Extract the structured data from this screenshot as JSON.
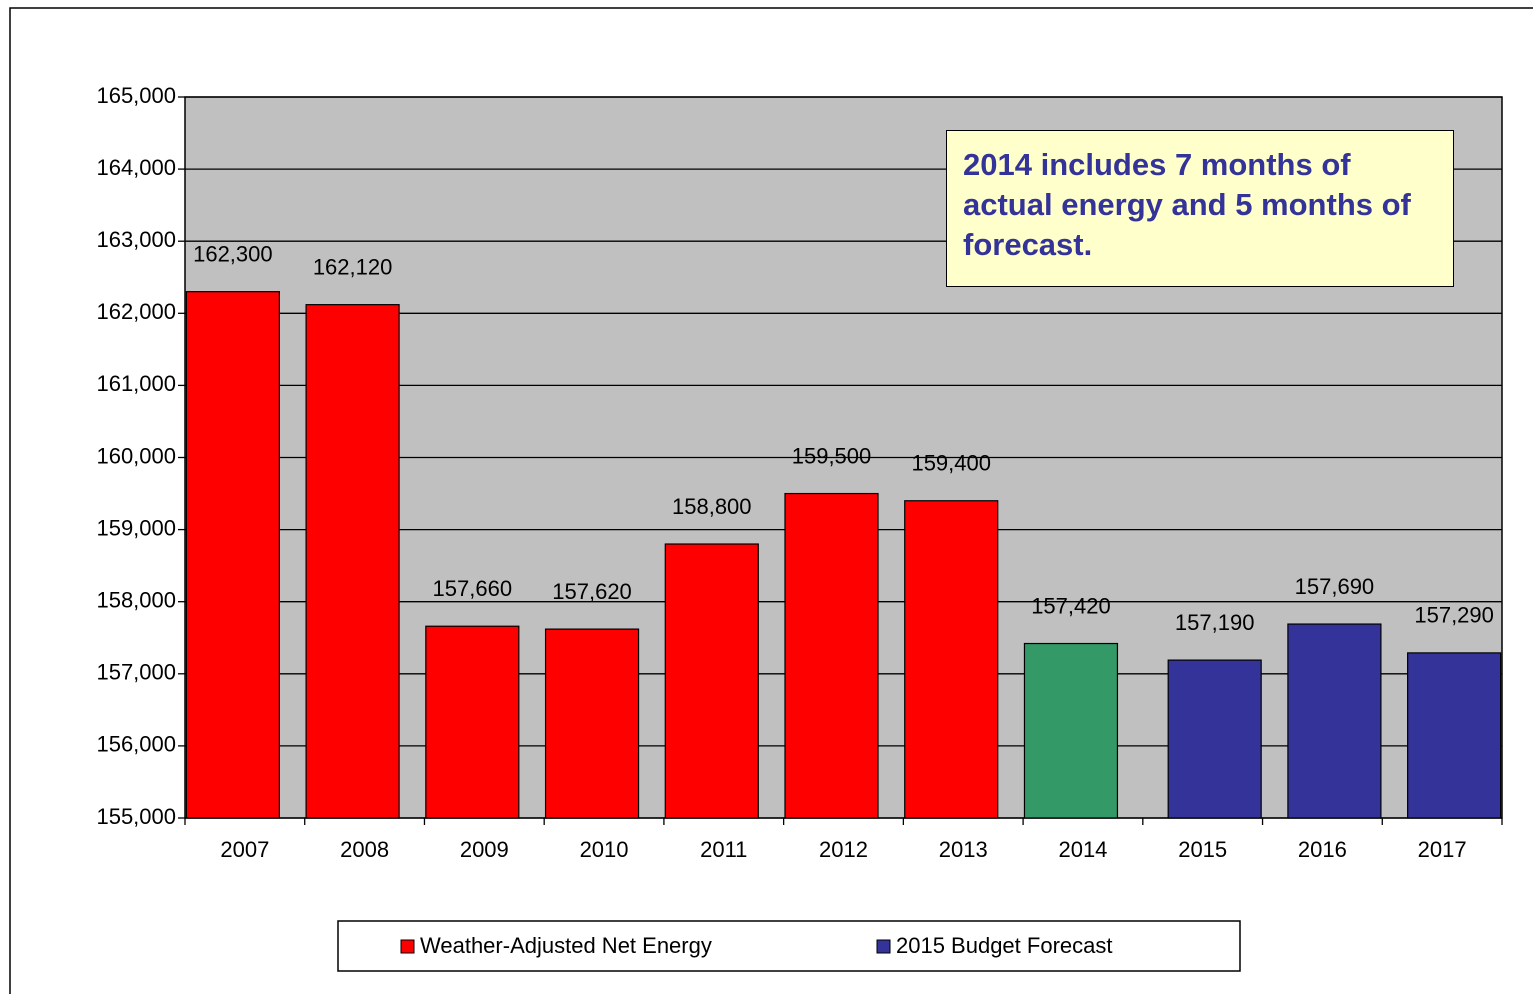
{
  "chart_data": {
    "type": "bar",
    "categories": [
      "2007",
      "2008",
      "2009",
      "2010",
      "2011",
      "2012",
      "2013",
      "2014",
      "2015",
      "2016",
      "2017"
    ],
    "series": [
      {
        "name": "Weather-Adjusted Net Energy",
        "color": "#ff0000",
        "point_colors": [
          "#ff0000",
          "#ff0000",
          "#ff0000",
          "#ff0000",
          "#ff0000",
          "#ff0000",
          "#ff0000",
          "#339966",
          null,
          null,
          null
        ],
        "values": [
          162300,
          162120,
          157660,
          157620,
          158800,
          159500,
          159400,
          157420,
          null,
          null,
          null
        ],
        "value_labels": [
          "162,300",
          "162,120",
          "157,660",
          "157,620",
          "158,800",
          "159,500",
          "159,400",
          "157,420",
          null,
          null,
          null
        ]
      },
      {
        "name": "2015 Budget Forecast",
        "color": "#333399",
        "values": [
          null,
          null,
          null,
          null,
          null,
          null,
          null,
          null,
          157190,
          157690,
          157290
        ],
        "value_labels": [
          null,
          null,
          null,
          null,
          null,
          null,
          null,
          null,
          "157,190",
          "157,690",
          "157,290"
        ]
      }
    ],
    "ylim": [
      155000,
      165000
    ],
    "yticks": [
      {
        "value": 155000,
        "label": "155,000"
      },
      {
        "value": 156000,
        "label": "156,000"
      },
      {
        "value": 157000,
        "label": "157,000"
      },
      {
        "value": 158000,
        "label": "158,000"
      },
      {
        "value": 159000,
        "label": "159,000"
      },
      {
        "value": 160000,
        "label": "160,000"
      },
      {
        "value": 161000,
        "label": "161,000"
      },
      {
        "value": 162000,
        "label": "162,000"
      },
      {
        "value": 163000,
        "label": "163,000"
      },
      {
        "value": 164000,
        "label": "164,000"
      },
      {
        "value": 165000,
        "label": "165,000"
      }
    ],
    "grid": true,
    "plot_background": "#c0c0c0",
    "annotation": "2014 includes 7 months of actual energy and 5 months of forecast."
  }
}
